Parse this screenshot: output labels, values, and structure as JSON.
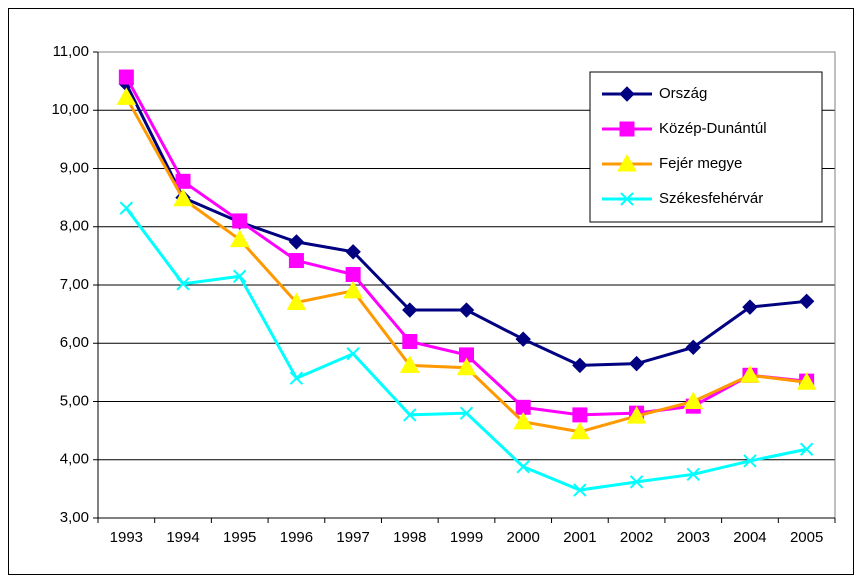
{
  "chart_data": {
    "type": "line",
    "categories": [
      "1993",
      "1994",
      "1995",
      "1996",
      "1997",
      "1998",
      "1999",
      "2000",
      "2001",
      "2002",
      "2003",
      "2004",
      "2005"
    ],
    "series": [
      {
        "name": "Ország",
        "color": "#000080",
        "marker": "diamond",
        "marker_color": "#000080",
        "values": [
          10.45,
          8.5,
          8.08,
          7.74,
          7.57,
          6.57,
          6.57,
          6.07,
          5.62,
          5.65,
          5.93,
          6.62,
          6.72
        ]
      },
      {
        "name": "Közép-Dunántúl",
        "color": "#ff00ff",
        "marker": "square",
        "marker_color": "#ff00ff",
        "values": [
          10.57,
          8.78,
          8.1,
          7.42,
          7.18,
          6.03,
          5.8,
          4.9,
          4.77,
          4.8,
          4.92,
          5.45,
          5.35
        ]
      },
      {
        "name": "Fejér megye",
        "color": "#ff9900",
        "marker": "triangle",
        "marker_color": "#ffff00",
        "values": [
          10.22,
          8.48,
          7.78,
          6.7,
          6.9,
          5.62,
          5.58,
          4.65,
          4.48,
          4.75,
          5.0,
          5.45,
          5.33
        ]
      },
      {
        "name": "Székesfehérvár",
        "color": "#00ffff",
        "marker": "x",
        "marker_color": "#00ffff",
        "values": [
          8.32,
          7.02,
          7.15,
          5.4,
          5.82,
          4.77,
          4.8,
          3.88,
          3.48,
          3.62,
          3.75,
          3.98,
          4.18
        ]
      }
    ],
    "ylim": [
      3,
      11
    ],
    "yticks": [
      {
        "value": 3,
        "label": "3,00"
      },
      {
        "value": 4,
        "label": "4,00"
      },
      {
        "value": 5,
        "label": "5,00"
      },
      {
        "value": 6,
        "label": "6,00"
      },
      {
        "value": 7,
        "label": "7,00"
      },
      {
        "value": 8,
        "label": "8,00"
      },
      {
        "value": 9,
        "label": "9,00"
      },
      {
        "value": 10,
        "label": "10,00"
      },
      {
        "value": 11,
        "label": "11,00"
      }
    ],
    "grid": true,
    "legend": "upper right"
  }
}
